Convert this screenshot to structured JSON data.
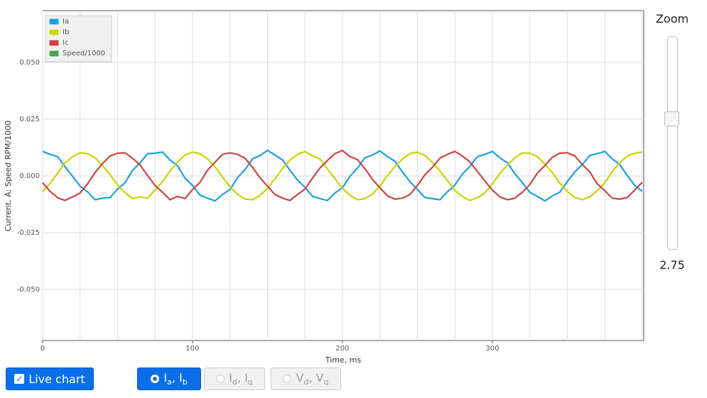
{
  "chart_data": {
    "type": "line",
    "xlabel": "Time, ms",
    "ylabel": "Current, A; Speed RPM/1000",
    "x": [
      0,
      5,
      10,
      15,
      20,
      25,
      30,
      35,
      40,
      45,
      50,
      55,
      60,
      65,
      70,
      75,
      80,
      85,
      90,
      95,
      100,
      105,
      110,
      115,
      120,
      125,
      130,
      135,
      140,
      145,
      150,
      155,
      160,
      165,
      170,
      175,
      180,
      185,
      190,
      195,
      200,
      205,
      210,
      215,
      220,
      225,
      230,
      235,
      240,
      245,
      250,
      255,
      260,
      265,
      270,
      275,
      280,
      285,
      290,
      295,
      300,
      305,
      310,
      315,
      320,
      325,
      330,
      335,
      340,
      345,
      350,
      355,
      360,
      365,
      370,
      375,
      380,
      385,
      390,
      395,
      400
    ],
    "series": [
      {
        "name": "Ia",
        "color": "#1ba1e2",
        "values": [
          0.0108,
          0.0095,
          0.0085,
          0.004,
          -0.0002,
          -0.0045,
          -0.007,
          -0.0105,
          -0.0098,
          -0.0095,
          -0.0058,
          -0.003,
          0.0025,
          0.0058,
          0.0098,
          0.01,
          0.0105,
          0.007,
          0.0045,
          -0.001,
          -0.0042,
          -0.0085,
          -0.0098,
          -0.011,
          -0.0082,
          -0.006,
          -0.0008,
          0.0028,
          0.0075,
          0.009,
          0.0112,
          0.0092,
          0.007,
          0.0025,
          -0.0018,
          -0.005,
          -0.009,
          -0.01,
          -0.0108,
          -0.0075,
          -0.0052,
          -0.0002,
          0.0035,
          0.008,
          0.0092,
          0.011,
          0.0085,
          0.0065,
          0.0018,
          -0.0025,
          -0.006,
          -0.0095,
          -0.01,
          -0.0105,
          -0.007,
          -0.004,
          0.0008,
          0.0042,
          0.0085,
          0.0095,
          0.0108,
          0.008,
          0.0058,
          0.001,
          -0.003,
          -0.0072,
          -0.009,
          -0.011,
          -0.0088,
          -0.0072,
          -0.0025,
          0.0018,
          0.005,
          0.009,
          0.0098,
          0.0108,
          0.0075,
          0.005,
          0.0002,
          -0.0042,
          -0.0068
        ]
      },
      {
        "name": "Ib",
        "color": "#c5d600",
        "values": [
          -0.007,
          -0.0032,
          0.0012,
          0.0058,
          0.0085,
          0.0102,
          0.0098,
          0.008,
          0.0045,
          0.0005,
          -0.004,
          -0.0075,
          -0.01,
          -0.0092,
          -0.0098,
          -0.0062,
          -0.0025,
          0.0022,
          0.0062,
          0.0092,
          0.0105,
          0.0098,
          0.0075,
          0.004,
          -0.0005,
          -0.0048,
          -0.008,
          -0.0102,
          -0.0105,
          -0.0085,
          -0.0055,
          -0.0012,
          0.0032,
          0.007,
          0.0095,
          0.0108,
          0.0088,
          0.0075,
          0.003,
          -0.0012,
          -0.0055,
          -0.0085,
          -0.0105,
          -0.01,
          -0.008,
          -0.0045,
          0.0002,
          0.004,
          0.0075,
          0.0098,
          0.0105,
          0.009,
          0.006,
          0.0022,
          -0.002,
          -0.0065,
          -0.009,
          -0.0108,
          -0.0095,
          -0.0075,
          -0.0035,
          0.001,
          0.0048,
          0.008,
          0.0102,
          0.01,
          0.0085,
          0.0052,
          0.0015,
          -0.0032,
          -0.0068,
          -0.0095,
          -0.0105,
          -0.0092,
          -0.0065,
          -0.003,
          0.002,
          0.0058,
          0.0088,
          0.01,
          0.0105
        ]
      },
      {
        "name": "Ic",
        "color": "#cc4444",
        "values": [
          -0.003,
          -0.0068,
          -0.0096,
          -0.0108,
          -0.0092,
          -0.0075,
          -0.0035,
          0.0015,
          0.0055,
          0.0088,
          0.01,
          0.0102,
          0.0078,
          0.0048,
          0.0002,
          -0.0042,
          -0.0072,
          -0.0105,
          -0.009,
          -0.01,
          -0.006,
          -0.0028,
          0.0025,
          0.006,
          0.0095,
          0.0102,
          0.0095,
          0.0078,
          0.0038,
          -0.0008,
          -0.0045,
          -0.0082,
          -0.0098,
          -0.0108,
          -0.0082,
          -0.0058,
          -0.001,
          0.0035,
          0.0068,
          0.0098,
          0.0112,
          0.0085,
          0.0072,
          0.0032,
          -0.0015,
          -0.0052,
          -0.0088,
          -0.0102,
          -0.0098,
          -0.0082,
          -0.0042,
          0.0005,
          0.0038,
          0.0078,
          0.0095,
          0.0108,
          0.0088,
          0.0062,
          0.002,
          -0.0022,
          -0.0062,
          -0.0092,
          -0.0105,
          -0.0098,
          -0.0072,
          -0.0038,
          0.0012,
          0.0045,
          0.0082,
          0.01,
          0.0102,
          0.0088,
          0.005,
          0.0018,
          -0.0035,
          -0.0065,
          -0.0098,
          -0.0102,
          -0.0095,
          -0.0062,
          -0.0028
        ]
      },
      {
        "name": "Speed/1000",
        "color": "#4aa54a"
      }
    ],
    "xlim": [
      0,
      401
    ],
    "ylim": [
      -0.0725,
      0.0728
    ],
    "xticks": [
      0,
      100,
      200,
      300
    ],
    "xgridticks": [
      25,
      50,
      75,
      125,
      150,
      175,
      225,
      250,
      275,
      325,
      350,
      375,
      400
    ],
    "yticks": [
      {
        "value": -0.05,
        "label": "-0.050"
      },
      {
        "value": -0.025,
        "label": "-0.025"
      },
      {
        "value": 0,
        "label": "0.000"
      },
      {
        "value": 0.025,
        "label": "0.025"
      },
      {
        "value": 0.05,
        "label": "0.050"
      }
    ],
    "grid": true,
    "legend": "top-left"
  },
  "zoom": {
    "label": "Zoom",
    "value": "2.75"
  },
  "controls": {
    "live": "Live chart",
    "radios": [
      {
        "parts": [
          "I",
          "a",
          ", I",
          "b"
        ]
      },
      {
        "parts": [
          "I",
          "d",
          ", I",
          "q"
        ]
      },
      {
        "parts": [
          "V",
          "d",
          ", V",
          "q"
        ]
      }
    ]
  }
}
